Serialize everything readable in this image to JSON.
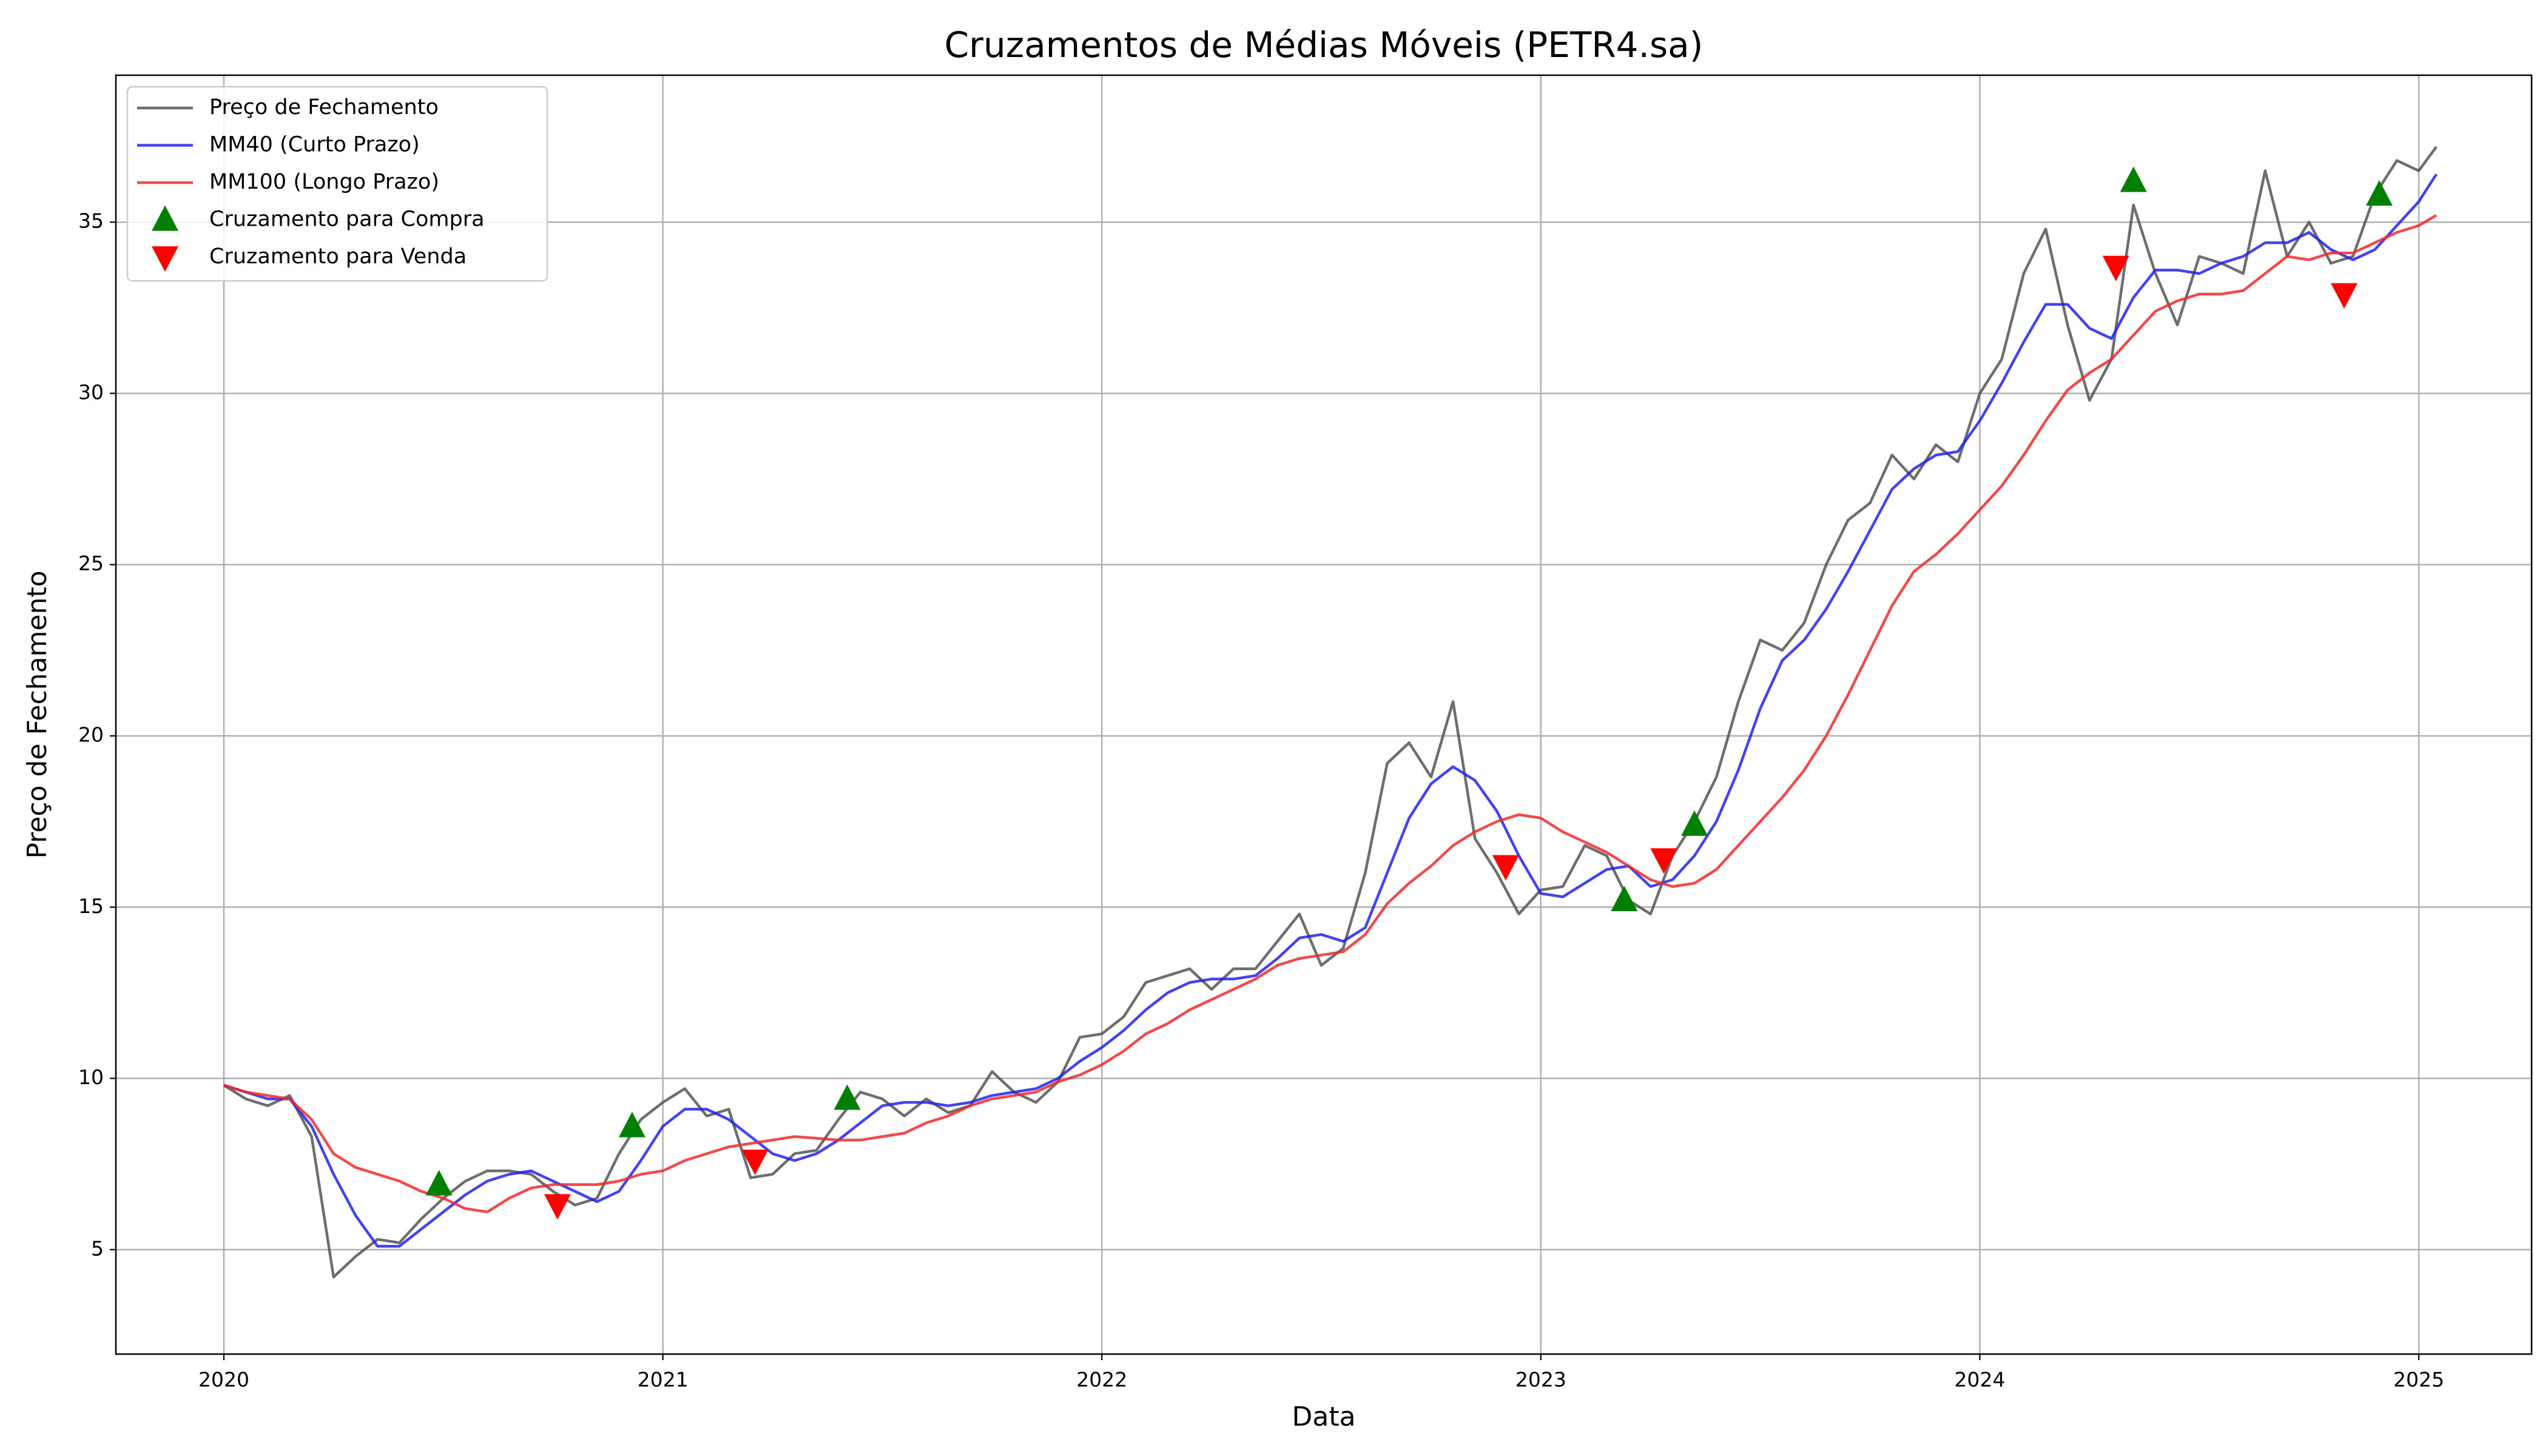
{
  "chart_data": {
    "type": "line",
    "title": "Cruzamentos de Médias Móveis (PETR4.sa)",
    "xlabel": "Data",
    "ylabel": "Preço de Fechamento",
    "xlim": [
      2019.754,
      2025.257
    ],
    "ylim": [
      1.95,
      39.29
    ],
    "xticks": [
      2020,
      2021,
      2022,
      2023,
      2024,
      2025
    ],
    "yticks": [
      5,
      10,
      15,
      20,
      25,
      30,
      35
    ],
    "grid": true,
    "legend": "upper left",
    "x": [
      2020.0,
      2020.05,
      2020.1,
      2020.15,
      2020.2,
      2020.25,
      2020.3,
      2020.35,
      2020.4,
      2020.45,
      2020.5,
      2020.55,
      2020.6,
      2020.65,
      2020.7,
      2020.75,
      2020.8,
      2020.85,
      2020.9,
      2020.95,
      2021.0,
      2021.05,
      2021.1,
      2021.15,
      2021.2,
      2021.25,
      2021.3,
      2021.35,
      2021.4,
      2021.45,
      2021.5,
      2021.55,
      2021.6,
      2021.65,
      2021.7,
      2021.75,
      2021.8,
      2021.85,
      2021.9,
      2021.95,
      2022.0,
      2022.05,
      2022.1,
      2022.15,
      2022.2,
      2022.25,
      2022.3,
      2022.35,
      2022.4,
      2022.45,
      2022.5,
      2022.55,
      2022.6,
      2022.65,
      2022.7,
      2022.75,
      2022.8,
      2022.85,
      2022.9,
      2022.95,
      2023.0,
      2023.05,
      2023.1,
      2023.15,
      2023.2,
      2023.25,
      2023.3,
      2023.35,
      2023.4,
      2023.45,
      2023.5,
      2023.55,
      2023.6,
      2023.65,
      2023.7,
      2023.75,
      2023.8,
      2023.85,
      2023.9,
      2023.95,
      2024.0,
      2024.05,
      2024.1,
      2024.15,
      2024.2,
      2024.25,
      2024.3,
      2024.35,
      2024.4,
      2024.45,
      2024.5,
      2024.55,
      2024.6,
      2024.65,
      2024.7,
      2024.75,
      2024.8,
      2024.85,
      2024.9,
      2024.95,
      2025.0,
      2025.04
    ],
    "series": [
      {
        "name": "Preço de Fechamento",
        "color": "#555555",
        "kind": "line",
        "values": [
          9.8,
          9.4,
          9.2,
          9.5,
          8.3,
          4.2,
          4.8,
          5.3,
          5.2,
          5.9,
          6.5,
          7.0,
          7.3,
          7.3,
          7.2,
          6.7,
          6.3,
          6.5,
          7.8,
          8.8,
          9.3,
          9.7,
          8.9,
          9.1,
          7.1,
          7.2,
          7.8,
          7.9,
          8.8,
          9.6,
          9.4,
          8.9,
          9.4,
          9.0,
          9.2,
          10.2,
          9.6,
          9.3,
          9.9,
          11.2,
          11.3,
          11.8,
          12.8,
          13.0,
          13.2,
          12.6,
          13.2,
          13.2,
          14.0,
          14.8,
          13.3,
          13.8,
          16.0,
          19.2,
          19.8,
          18.8,
          21.0,
          17.0,
          16.0,
          14.8,
          15.5,
          15.6,
          16.8,
          16.5,
          15.2,
          14.8,
          16.5,
          17.5,
          18.8,
          21.0,
          22.8,
          22.5,
          23.3,
          25.0,
          26.3,
          26.8,
          28.2,
          27.5,
          28.5,
          28.0,
          30.0,
          31.0,
          33.5,
          34.8,
          32.0,
          29.8,
          31.0,
          35.5,
          33.5,
          32.0,
          34.0,
          33.8,
          33.5,
          36.5,
          34.0,
          35.0,
          33.8,
          34.0,
          35.8,
          36.8,
          36.5,
          37.2
        ]
      },
      {
        "name": "MM40 (Curto Prazo)",
        "color": "#2222ee",
        "kind": "line",
        "values": [
          9.8,
          9.6,
          9.4,
          9.4,
          8.6,
          7.2,
          6.0,
          5.1,
          5.1,
          5.6,
          6.1,
          6.6,
          7.0,
          7.2,
          7.3,
          7.0,
          6.7,
          6.4,
          6.7,
          7.6,
          8.6,
          9.1,
          9.1,
          8.8,
          8.3,
          7.8,
          7.6,
          7.8,
          8.2,
          8.7,
          9.2,
          9.3,
          9.3,
          9.2,
          9.3,
          9.5,
          9.6,
          9.7,
          10.0,
          10.5,
          10.9,
          11.4,
          12.0,
          12.5,
          12.8,
          12.9,
          12.9,
          13.0,
          13.5,
          14.1,
          14.2,
          14.0,
          14.4,
          16.0,
          17.6,
          18.6,
          19.1,
          18.7,
          17.8,
          16.5,
          15.4,
          15.3,
          15.7,
          16.1,
          16.2,
          15.6,
          15.8,
          16.5,
          17.5,
          19.0,
          20.8,
          22.2,
          22.8,
          23.7,
          24.8,
          26.0,
          27.2,
          27.8,
          28.2,
          28.3,
          29.2,
          30.3,
          31.5,
          32.6,
          32.6,
          31.9,
          31.6,
          32.8,
          33.6,
          33.6,
          33.5,
          33.8,
          34.0,
          34.4,
          34.4,
          34.7,
          34.2,
          33.9,
          34.2,
          34.9,
          35.6,
          36.4
        ]
      },
      {
        "name": "MM100 (Longo Prazo)",
        "color": "#ee2a2a",
        "kind": "line",
        "values": [
          9.8,
          9.6,
          9.5,
          9.4,
          8.8,
          7.8,
          7.4,
          7.2,
          7.0,
          6.7,
          6.5,
          6.2,
          6.1,
          6.5,
          6.8,
          6.9,
          6.9,
          6.9,
          7.0,
          7.2,
          7.3,
          7.6,
          7.8,
          8.0,
          8.1,
          8.2,
          8.3,
          8.25,
          8.2,
          8.2,
          8.3,
          8.4,
          8.7,
          8.9,
          9.2,
          9.4,
          9.5,
          9.6,
          9.9,
          10.1,
          10.4,
          10.8,
          11.3,
          11.6,
          12.0,
          12.3,
          12.6,
          12.9,
          13.3,
          13.5,
          13.6,
          13.7,
          14.2,
          15.1,
          15.7,
          16.2,
          16.8,
          17.2,
          17.5,
          17.7,
          17.6,
          17.2,
          16.9,
          16.6,
          16.2,
          15.8,
          15.6,
          15.7,
          16.1,
          16.8,
          17.5,
          18.2,
          19.0,
          20.0,
          21.2,
          22.5,
          23.8,
          24.8,
          25.3,
          25.9,
          26.6,
          27.3,
          28.2,
          29.2,
          30.1,
          30.6,
          31.0,
          31.7,
          32.4,
          32.7,
          32.9,
          32.9,
          33.0,
          33.5,
          34.0,
          33.9,
          34.1,
          34.1,
          34.4,
          34.7,
          34.9,
          35.2
        ]
      },
      {
        "name": "Cruzamento para Compra",
        "color": "green",
        "kind": "marker",
        "marker": "^",
        "x": [
          2020.49,
          2020.93,
          2021.42,
          2023.19,
          2023.35,
          2024.35,
          2024.91
        ],
        "values": [
          6.9,
          8.6,
          9.4,
          15.2,
          17.4,
          36.2,
          35.8
        ]
      },
      {
        "name": "Cruzamento para Venda",
        "color": "red",
        "kind": "marker",
        "marker": "v",
        "x": [
          2020.76,
          2021.21,
          2022.92,
          2023.28,
          2024.31,
          2024.83
        ],
        "values": [
          6.3,
          7.6,
          16.2,
          16.4,
          33.7,
          32.9
        ]
      }
    ]
  }
}
